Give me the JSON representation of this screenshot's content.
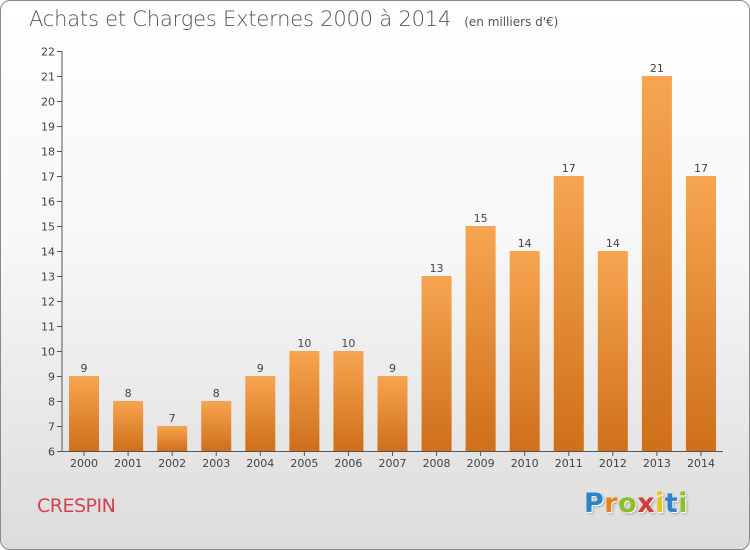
{
  "header": {
    "title": "Achats et Charges Externes 2000 à 2014",
    "unit_note": "(en milliers d'€)"
  },
  "footer": {
    "commune": "CRESPIN",
    "logo_text": "Proxiti",
    "logo_letters": [
      "P",
      "r",
      "o",
      "x",
      "i",
      "t",
      "i"
    ],
    "logo_colors": [
      "#2a84c6",
      "#e6821e",
      "#8cbf2a",
      "#d63a3a",
      "#e6c21e",
      "#2a84c6",
      "#8cbf2a"
    ]
  },
  "colors": {
    "bar_light": "#f7a551",
    "bar_dark": "#cf6f1a",
    "axis": "#555555",
    "text": "#444444",
    "title": "#555555",
    "commune": "#d2454f"
  },
  "chart_data": {
    "type": "bar",
    "title": "Achats et Charges Externes 2000 à 2014",
    "subtitle": "(en milliers d'€)",
    "categories": [
      "2000",
      "2001",
      "2002",
      "2003",
      "2004",
      "2005",
      "2006",
      "2007",
      "2008",
      "2009",
      "2010",
      "2011",
      "2012",
      "2013",
      "2014"
    ],
    "values": [
      9,
      8,
      7,
      8,
      9,
      10,
      10,
      9,
      13,
      15,
      14,
      17,
      14,
      21,
      17
    ],
    "ylim": [
      6,
      22
    ],
    "yticks": [
      6,
      7,
      8,
      9,
      10,
      11,
      12,
      13,
      14,
      15,
      16,
      17,
      18,
      19,
      20,
      21,
      22
    ],
    "grid": false,
    "data_labels": true,
    "xlabel": "",
    "ylabel": ""
  }
}
